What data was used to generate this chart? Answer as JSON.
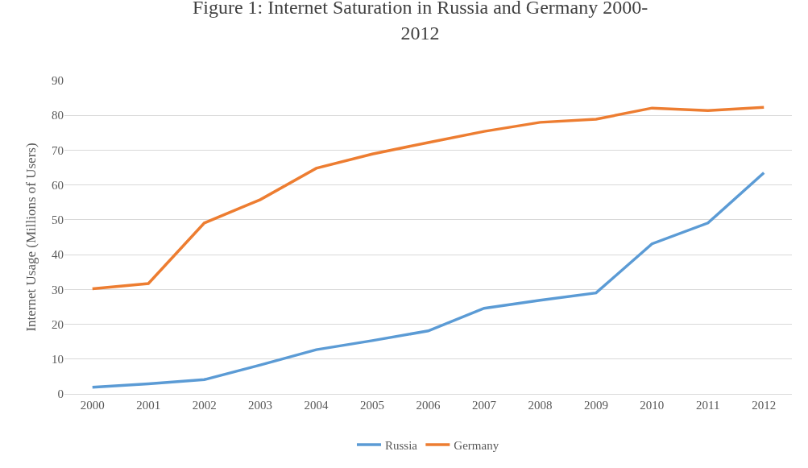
{
  "chart_data": {
    "type": "line",
    "title": "Figure 1: Internet Saturation in Russia and Germany 2000-\n2012",
    "ylabel": "Internet Usage (Millions of Users)",
    "categories": [
      "2000",
      "2001",
      "2002",
      "2003",
      "2004",
      "2005",
      "2006",
      "2007",
      "2008",
      "2009",
      "2010",
      "2011",
      "2012"
    ],
    "series": [
      {
        "name": "Russia",
        "color": "#5b9bd5",
        "values": [
          1.9,
          2.9,
          4.1,
          8.3,
          12.7,
          15.3,
          18.1,
          24.6,
          26.9,
          29.0,
          43.1,
          49.1,
          63.5
        ]
      },
      {
        "name": "Germany",
        "color": "#ed7d31",
        "values": [
          30.2,
          31.7,
          49.1,
          55.8,
          64.8,
          68.9,
          72.2,
          75.4,
          78.0,
          78.9,
          82.1,
          81.4,
          82.3
        ]
      }
    ],
    "ylim": [
      0,
      90
    ],
    "yticks": [
      0,
      10,
      20,
      30,
      40,
      50,
      60,
      70,
      80,
      90
    ],
    "grid": "y",
    "legend": "bottom",
    "marker": "none",
    "line_style": "solid"
  }
}
